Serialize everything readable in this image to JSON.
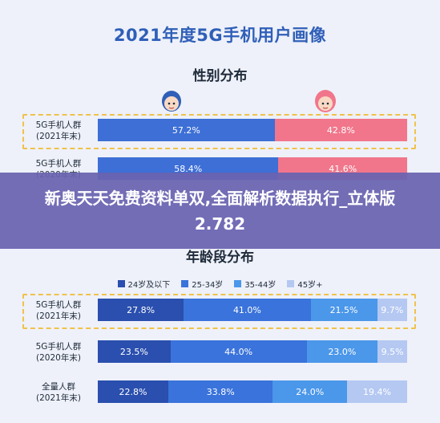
{
  "banner": {
    "text": "新奥天天免费资料单双,全面解析数据执行_立体版2.782"
  },
  "chart_data": [
    {
      "type": "bar",
      "title": "2021年度5G手机用户画像",
      "subtitle": "性别分布",
      "stacked": true,
      "categories": [
        "5G手机人群\n(2021年末)",
        "5G手机人群\n(2020年末)"
      ],
      "series": [
        {
          "values": [
            57.2,
            58.4
          ],
          "labels": [
            "57.2%",
            "58.4%"
          ],
          "color": "#3d6fd6"
        },
        {
          "values": [
            42.8,
            41.6
          ],
          "labels": [
            "42.8%",
            "41.6%"
          ],
          "color": "#f1768b"
        }
      ],
      "ylim": [
        0,
        100
      ]
    },
    {
      "type": "bar",
      "subtitle": "年龄段分布",
      "stacked": true,
      "categories": [
        "5G手机人群\n(2021年末)",
        "5G手机人群\n(2020年末)",
        "全量人群\n(2021年末)"
      ],
      "series": [
        {
          "name": "24岁及以下",
          "values": [
            27.8,
            23.5,
            22.8
          ],
          "labels": [
            "27.8%",
            "23.5%",
            "22.8%"
          ],
          "color": "#2a4fae"
        },
        {
          "name": "25-34岁",
          "values": [
            41.0,
            44.0,
            33.8
          ],
          "labels": [
            "41.0%",
            "44.0%",
            "33.8%"
          ],
          "color": "#3a73db"
        },
        {
          "name": "35-44岁",
          "values": [
            21.5,
            23.0,
            24.0
          ],
          "labels": [
            "21.5%",
            "23.0%",
            "24.0%"
          ],
          "color": "#4b97ea"
        },
        {
          "name": "45岁+",
          "values": [
            9.7,
            9.5,
            19.4
          ],
          "labels": [
            "9.7%",
            "9.5%",
            "19.4%"
          ],
          "color": "#b4c8f2"
        }
      ],
      "ylim": [
        0,
        100
      ]
    }
  ],
  "icons": {
    "male": "male-avatar-icon",
    "female": "female-avatar-icon"
  }
}
